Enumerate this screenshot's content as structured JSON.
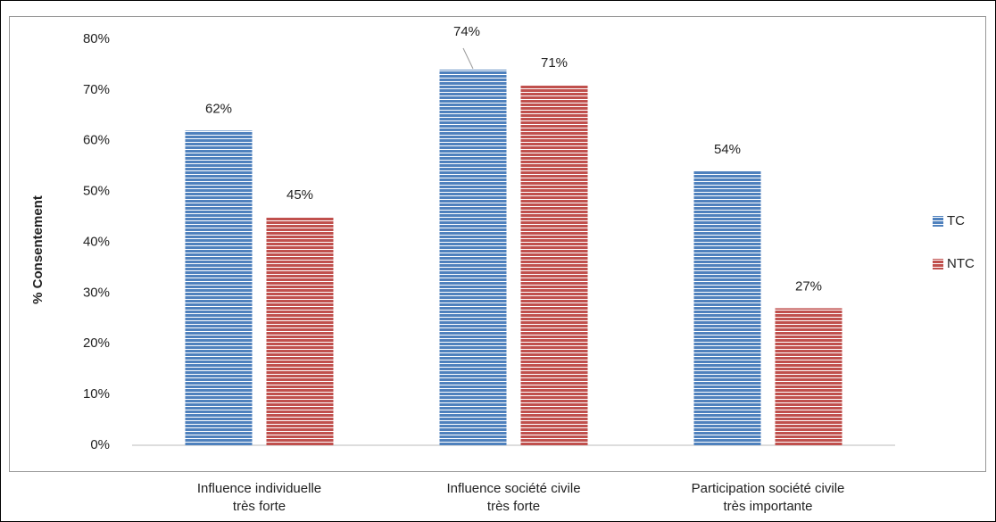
{
  "chart_data": {
    "type": "bar",
    "y_axis_label": "% Consentement",
    "categories": [
      "Influence individuelle\ntrès forte",
      "Influence société civile\ntrès forte",
      "Participation société civile\ntrès importante"
    ],
    "series": [
      {
        "name": "TC",
        "color": "#4f81bd",
        "values": [
          62,
          74,
          54
        ],
        "value_labels": [
          "62%",
          "74%",
          "54%"
        ]
      },
      {
        "name": "NTC",
        "color": "#c0504d",
        "values": [
          45,
          71,
          27
        ],
        "value_labels": [
          "45%",
          "71%",
          "27%"
        ]
      }
    ],
    "ylim": [
      0,
      80
    ],
    "yticks": [
      {
        "value": 0,
        "label": "0%"
      },
      {
        "value": 10,
        "label": "10%"
      },
      {
        "value": 20,
        "label": "20%"
      },
      {
        "value": 30,
        "label": "30%"
      },
      {
        "value": 40,
        "label": "40%"
      },
      {
        "value": 50,
        "label": "50%"
      },
      {
        "value": 60,
        "label": "60%"
      },
      {
        "value": 70,
        "label": "70%"
      },
      {
        "value": 80,
        "label": "80%"
      }
    ],
    "grid": false,
    "legend": "right"
  }
}
